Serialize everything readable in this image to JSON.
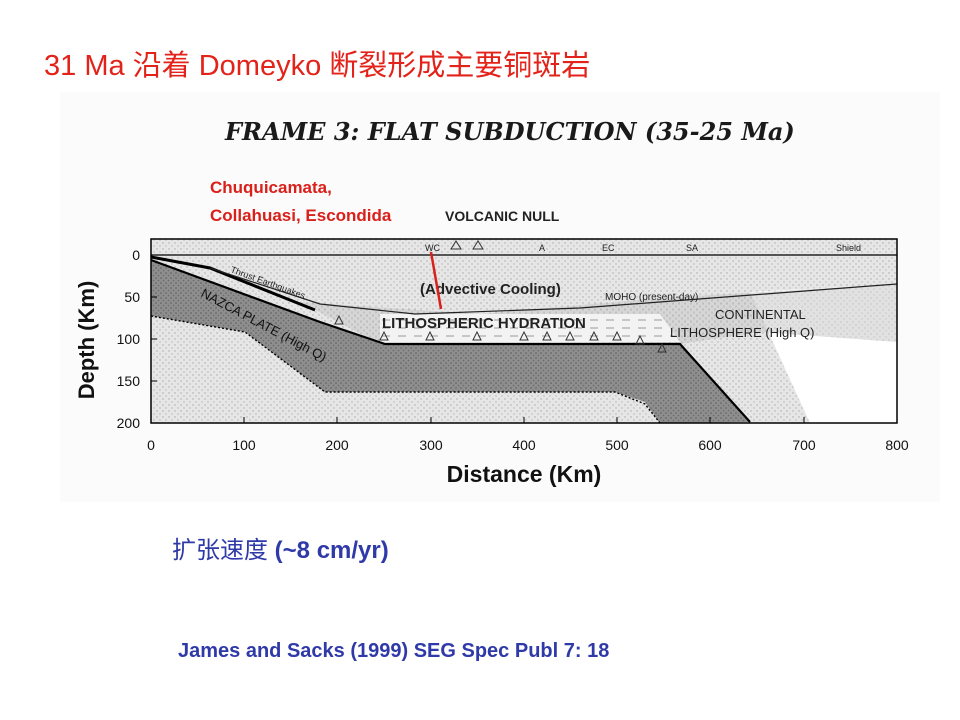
{
  "slide": {
    "title": "31 Ma 沿着 Domeyko 断裂形成主要铜斑岩",
    "speed_zh": "扩张速度",
    "speed_value": "(~8 cm/yr)",
    "citation": "James and Sacks (1999) SEG Spec Publ 7: 18"
  },
  "figure": {
    "frame_title": "FRAME 3:  FLAT SUBDUCTION (35-25 Ma)",
    "annotation_line1": "Chuquicamata,",
    "annotation_line2": "Collahuasi, Escondida",
    "volcanic_null": "VOLCANIC NULL",
    "surface_labels": [
      "WC",
      "A",
      "EC",
      "SA",
      "Shield"
    ],
    "thrust_label": "Thrust Earthquakes",
    "advective_label": "(Advective Cooling)",
    "moho_label": "MOHO (present-day)",
    "hydration_label": "LITHOSPHERIC HYDRATION",
    "nazca_label": "NAZCA PLATE (High Q)",
    "continental_label_1": "CONTINENTAL",
    "continental_label_2": "LITHOSPHERE (High Q)",
    "x_axis_label": "Distance (Km)",
    "y_axis_label": "Depth (Km)",
    "x_ticks": [
      "0",
      "100",
      "200",
      "300",
      "400",
      "500",
      "600",
      "700",
      "800"
    ],
    "y_ticks": [
      "0",
      "50",
      "100",
      "150",
      "200"
    ],
    "colors": {
      "title_red": "#e32219",
      "annotation_red": "#d9201b",
      "text_blue": "#2f3aa8"
    }
  }
}
